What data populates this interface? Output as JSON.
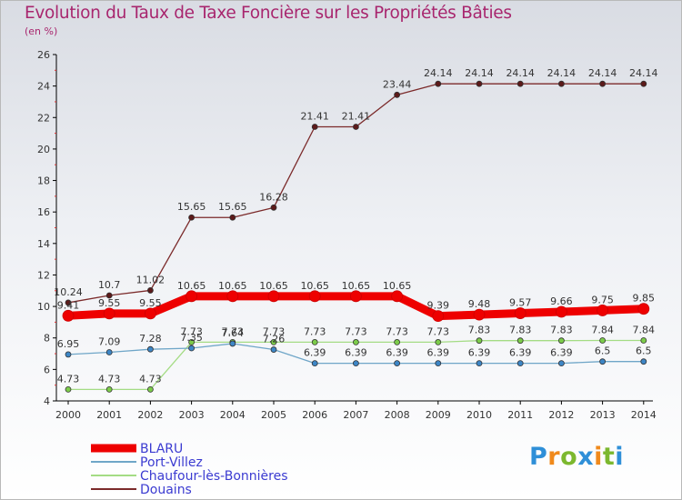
{
  "header": {
    "title": "Evolution du Taux de Taxe Foncière sur les Propriétés Bâties",
    "unit": "(en %)"
  },
  "logo": {
    "text": "Proxiti",
    "letters": [
      {
        "char": "P",
        "color": "#2f8fd8"
      },
      {
        "char": "r",
        "color": "#f08a1c"
      },
      {
        "char": "o",
        "color": "#7cb82f"
      },
      {
        "char": "x",
        "color": "#2f8fd8"
      },
      {
        "char": "i",
        "color": "#f08a1c"
      },
      {
        "char": "t",
        "color": "#7cb82f"
      },
      {
        "char": "i",
        "color": "#2f8fd8"
      }
    ]
  },
  "chart_data": {
    "type": "line",
    "title": "Evolution du Taux de Taxe Foncière sur les Propriétés Bâties",
    "ylabel": "(en %)",
    "xlabel": "",
    "categories": [
      "2000",
      "2001",
      "2002",
      "2003",
      "2004",
      "2005",
      "2006",
      "2007",
      "2008",
      "2009",
      "2010",
      "2011",
      "2012",
      "2013",
      "2014"
    ],
    "ylim": [
      4,
      26
    ],
    "yticks": [
      4,
      6,
      8,
      10,
      12,
      14,
      16,
      18,
      20,
      22,
      24,
      26
    ],
    "grid": false,
    "legend_position": "bottom-left",
    "series": [
      {
        "name": "Douains",
        "color": "#7b2a2a",
        "marker": "#5c1a1a",
        "values": [
          10.24,
          10.7,
          11.02,
          15.65,
          15.65,
          16.28,
          21.41,
          21.41,
          23.44,
          24.14,
          24.14,
          24.14,
          24.14,
          24.14,
          24.14
        ],
        "labels": [
          "10.24",
          "10.7",
          "11.02",
          "15.65",
          "15.65",
          "16.28",
          "21.41",
          "21.41",
          "23.44",
          "24.14",
          "24.14",
          "24.14",
          "24.14",
          "24.14",
          "24.14"
        ]
      },
      {
        "name": "Chaufour-lès-Bonnières",
        "color": "#a4dc84",
        "marker": "#7ccc4a",
        "values": [
          4.73,
          4.73,
          4.73,
          7.73,
          7.73,
          7.73,
          7.73,
          7.73,
          7.73,
          7.73,
          7.83,
          7.83,
          7.83,
          7.84,
          7.84
        ],
        "labels": [
          "4.73",
          "4.73",
          "4.73",
          "7.73",
          "7.73",
          "7.73",
          "7.73",
          "7.73",
          "7.73",
          "7.73",
          "7.83",
          "7.83",
          "7.83",
          "7.84",
          "7.84"
        ]
      },
      {
        "name": "Port-Villez",
        "color": "#6fa6c8",
        "marker": "#3d86c6",
        "values": [
          6.95,
          7.09,
          7.28,
          7.35,
          7.64,
          7.26,
          6.39,
          6.39,
          6.39,
          6.39,
          6.39,
          6.39,
          6.39,
          6.5,
          6.5
        ],
        "labels": [
          "6.95",
          "7.09",
          "7.28",
          "7.35",
          "7.64",
          "7.26",
          "6.39",
          "6.39",
          "6.39",
          "6.39",
          "6.39",
          "6.39",
          "6.39",
          "6.5",
          "6.5"
        ]
      },
      {
        "name": "BLARU",
        "color": "#ee0000",
        "marker": "#ee0000",
        "values": [
          9.41,
          9.55,
          9.55,
          10.65,
          10.65,
          10.65,
          10.65,
          10.65,
          10.65,
          9.39,
          9.48,
          9.57,
          9.66,
          9.75,
          9.85
        ],
        "labels": [
          "9.41",
          "9.55",
          "9.55",
          "10.65",
          "10.65",
          "10.65",
          "10.65",
          "10.65",
          "10.65",
          "9.39",
          "9.48",
          "9.57",
          "9.66",
          "9.75",
          "9.85"
        ]
      }
    ],
    "legend": [
      "BLARU",
      "Port-Villez",
      "Chaufour-lès-Bonnières",
      "Douains"
    ]
  }
}
